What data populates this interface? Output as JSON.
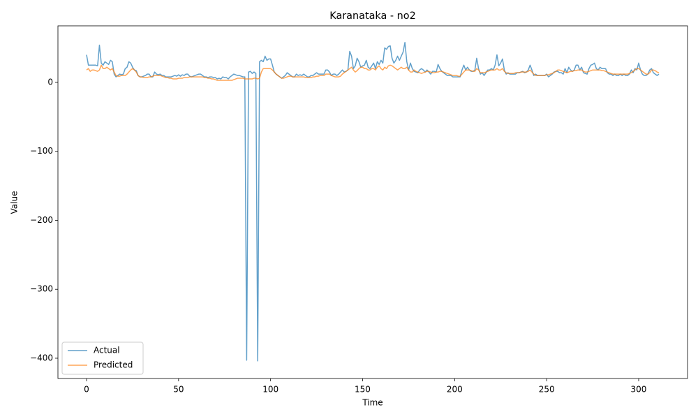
{
  "chart_data": {
    "type": "line",
    "title": "Karanataka - no2",
    "xlabel": "Time",
    "ylabel": "Value",
    "x": [
      0,
      1,
      2,
      3,
      4,
      5,
      6,
      7,
      8,
      9,
      10,
      11,
      12,
      13,
      14,
      15,
      16,
      17,
      18,
      19,
      20,
      21,
      22,
      23,
      24,
      25,
      26,
      27,
      28,
      29,
      30,
      31,
      32,
      33,
      34,
      35,
      36,
      37,
      38,
      39,
      40,
      41,
      42,
      43,
      44,
      45,
      46,
      47,
      48,
      49,
      50,
      51,
      52,
      53,
      54,
      55,
      56,
      57,
      58,
      59,
      60,
      61,
      62,
      63,
      64,
      65,
      66,
      67,
      68,
      69,
      70,
      71,
      72,
      73,
      74,
      75,
      76,
      77,
      78,
      79,
      80,
      81,
      82,
      83,
      84,
      85,
      86,
      87,
      88,
      89,
      90,
      91,
      92,
      93,
      94,
      95,
      96,
      97,
      98,
      99,
      100,
      101,
      102,
      103,
      104,
      105,
      106,
      107,
      108,
      109,
      110,
      111,
      112,
      113,
      114,
      115,
      116,
      117,
      118,
      119,
      120,
      121,
      122,
      123,
      124,
      125,
      126,
      127,
      128,
      129,
      130,
      131,
      132,
      133,
      134,
      135,
      136,
      137,
      138,
      139,
      140,
      141,
      142,
      143,
      144,
      145,
      146,
      147,
      148,
      149,
      150,
      151,
      152,
      153,
      154,
      155,
      156,
      157,
      158,
      159,
      160,
      161,
      162,
      163,
      164,
      165,
      166,
      167,
      168,
      169,
      170,
      171,
      172,
      173,
      174,
      175,
      176,
      177,
      178,
      179,
      180,
      181,
      182,
      183,
      184,
      185,
      186,
      187,
      188,
      189,
      190,
      191,
      192,
      193,
      194,
      195,
      196,
      197,
      198,
      199,
      200,
      201,
      202,
      203,
      204,
      205,
      206,
      207,
      208,
      209,
      210,
      211,
      212,
      213,
      214,
      215,
      216,
      217,
      218,
      219,
      220,
      221,
      222,
      223,
      224,
      225,
      226,
      227,
      228,
      229,
      230,
      231,
      232,
      233,
      234,
      235,
      236,
      237,
      238,
      239,
      240,
      241,
      242,
      243,
      244,
      245,
      246,
      247,
      248,
      249,
      250,
      251,
      252,
      253,
      254,
      255,
      256,
      257,
      258,
      259,
      260,
      261,
      262,
      263,
      264,
      265,
      266,
      267,
      268,
      269,
      270,
      271,
      272,
      273,
      274,
      275,
      276,
      277,
      278,
      279,
      280,
      281,
      282,
      283,
      284,
      285,
      286,
      287,
      288,
      289,
      290,
      291,
      292,
      293,
      294,
      295,
      296,
      297,
      298,
      299,
      300,
      301,
      302,
      303,
      304,
      305,
      306,
      307,
      308,
      309,
      310,
      311
    ],
    "series": [
      {
        "name": "Actual",
        "color": "#1f77b4",
        "values": [
          40,
          25,
          25,
          25,
          25,
          25,
          24,
          54,
          28,
          25,
          30,
          28,
          26,
          32,
          30,
          12,
          8,
          10,
          12,
          11,
          12,
          20,
          22,
          30,
          28,
          22,
          18,
          17,
          10,
          8,
          8,
          9,
          10,
          12,
          12,
          8,
          8,
          15,
          12,
          11,
          12,
          10,
          10,
          8,
          8,
          8,
          8,
          9,
          10,
          9,
          11,
          9,
          11,
          10,
          12,
          12,
          9,
          8,
          9,
          10,
          11,
          12,
          12,
          10,
          8,
          8,
          7,
          8,
          8,
          7,
          7,
          5,
          6,
          5,
          8,
          7,
          7,
          5,
          8,
          10,
          12,
          11,
          10,
          10,
          9,
          8,
          8,
          -403,
          15,
          16,
          13,
          15,
          13,
          -404,
          30,
          32,
          30,
          38,
          32,
          34,
          34,
          25,
          15,
          12,
          10,
          8,
          6,
          8,
          10,
          14,
          12,
          10,
          8,
          8,
          12,
          10,
          11,
          10,
          12,
          10,
          8,
          8,
          10,
          10,
          12,
          14,
          12,
          12,
          12,
          12,
          18,
          18,
          15,
          10,
          12,
          12,
          10,
          12,
          15,
          18,
          15,
          16,
          18,
          45,
          38,
          20,
          24,
          35,
          30,
          22,
          24,
          25,
          32,
          22,
          20,
          24,
          28,
          20,
          30,
          26,
          32,
          28,
          50,
          48,
          52,
          53,
          35,
          28,
          32,
          38,
          32,
          38,
          44,
          58,
          30,
          18,
          28,
          20,
          16,
          15,
          14,
          18,
          20,
          18,
          15,
          18,
          15,
          12,
          16,
          16,
          15,
          26,
          20,
          16,
          14,
          12,
          10,
          10,
          10,
          8,
          8,
          8,
          8,
          8,
          18,
          25,
          18,
          22,
          18,
          16,
          16,
          18,
          35,
          20,
          12,
          14,
          10,
          14,
          18,
          18,
          20,
          18,
          25,
          40,
          24,
          28,
          34,
          18,
          12,
          14,
          12,
          12,
          12,
          12,
          14,
          14,
          15,
          16,
          14,
          15,
          18,
          25,
          18,
          10,
          12,
          10,
          10,
          10,
          10,
          10,
          12,
          8,
          10,
          12,
          15,
          16,
          16,
          14,
          14,
          12,
          20,
          14,
          22,
          18,
          16,
          18,
          25,
          25,
          18,
          22,
          14,
          13,
          12,
          20,
          25,
          26,
          28,
          20,
          18,
          22,
          20,
          20,
          20,
          14,
          12,
          12,
          10,
          12,
          10,
          10,
          12,
          10,
          12,
          10,
          10,
          12,
          18,
          14,
          20,
          18,
          28,
          18,
          12,
          10,
          10,
          12,
          18,
          20,
          14,
          12,
          10,
          12
        ]
      },
      {
        "name": "Predicted",
        "color": "#ff7f0e",
        "values": [
          18,
          20,
          16,
          18,
          18,
          17,
          16,
          18,
          25,
          20,
          20,
          22,
          20,
          18,
          20,
          15,
          10,
          9,
          9,
          10,
          10,
          10,
          12,
          15,
          18,
          20,
          18,
          15,
          10,
          8,
          8,
          7,
          7,
          7,
          8,
          8,
          9,
          10,
          10,
          10,
          10,
          9,
          8,
          7,
          7,
          6,
          6,
          5,
          5,
          5,
          6,
          6,
          6,
          7,
          7,
          7,
          8,
          8,
          8,
          8,
          8,
          8,
          8,
          8,
          7,
          7,
          6,
          6,
          5,
          5,
          4,
          3,
          3,
          3,
          3,
          3,
          3,
          3,
          3,
          3,
          4,
          5,
          6,
          6,
          6,
          6,
          5,
          5,
          5,
          5,
          5,
          6,
          6,
          5,
          6,
          15,
          20,
          20,
          20,
          20,
          20,
          18,
          15,
          12,
          10,
          8,
          6,
          6,
          7,
          8,
          9,
          9,
          8,
          8,
          8,
          8,
          8,
          8,
          8,
          7,
          7,
          7,
          7,
          8,
          8,
          9,
          9,
          10,
          10,
          10,
          12,
          12,
          12,
          10,
          9,
          8,
          8,
          8,
          9,
          12,
          14,
          16,
          18,
          20,
          22,
          18,
          15,
          17,
          20,
          22,
          22,
          20,
          20,
          18,
          18,
          20,
          20,
          18,
          22,
          24,
          20,
          18,
          22,
          20,
          24,
          25,
          24,
          22,
          20,
          18,
          20,
          22,
          20,
          20,
          22,
          18,
          15,
          15,
          18,
          16,
          15,
          14,
          13,
          14,
          15,
          16,
          16,
          15,
          14,
          14,
          15,
          15,
          16,
          16,
          15,
          14,
          13,
          12,
          11,
          10,
          10,
          10,
          9,
          9,
          12,
          15,
          18,
          18,
          18,
          17,
          16,
          16,
          20,
          18,
          14,
          14,
          14,
          15,
          16,
          17,
          18,
          18,
          18,
          20,
          18,
          18,
          20,
          16,
          14,
          13,
          13,
          13,
          13,
          14,
          14,
          14,
          15,
          15,
          15,
          15,
          16,
          18,
          15,
          12,
          10,
          10,
          10,
          10,
          10,
          10,
          11,
          11,
          12,
          13,
          14,
          16,
          18,
          18,
          17,
          16,
          15,
          14,
          15,
          16,
          16,
          17,
          17,
          18,
          18,
          18,
          16,
          15,
          15,
          16,
          17,
          18,
          18,
          18,
          18,
          18,
          17,
          17,
          16,
          15,
          14,
          13,
          12,
          12,
          12,
          12,
          12,
          12,
          12,
          12,
          12,
          13,
          14,
          16,
          18,
          20,
          20,
          18,
          16,
          14,
          12,
          12,
          14,
          18,
          18,
          17,
          15,
          14
        ]
      }
    ],
    "xlim": [
      -15.55,
      326.55
    ],
    "xticks": [
      0,
      50,
      100,
      150,
      200,
      250,
      300
    ],
    "ylim": [
      -429.4,
      82
    ],
    "yticks": [
      {
        "value": -400,
        "label": "−400"
      },
      {
        "value": -300,
        "label": "−300"
      },
      {
        "value": -200,
        "label": "−200"
      },
      {
        "value": -100,
        "label": "−100"
      },
      0
    ],
    "grid": false,
    "legend": "lower left"
  }
}
